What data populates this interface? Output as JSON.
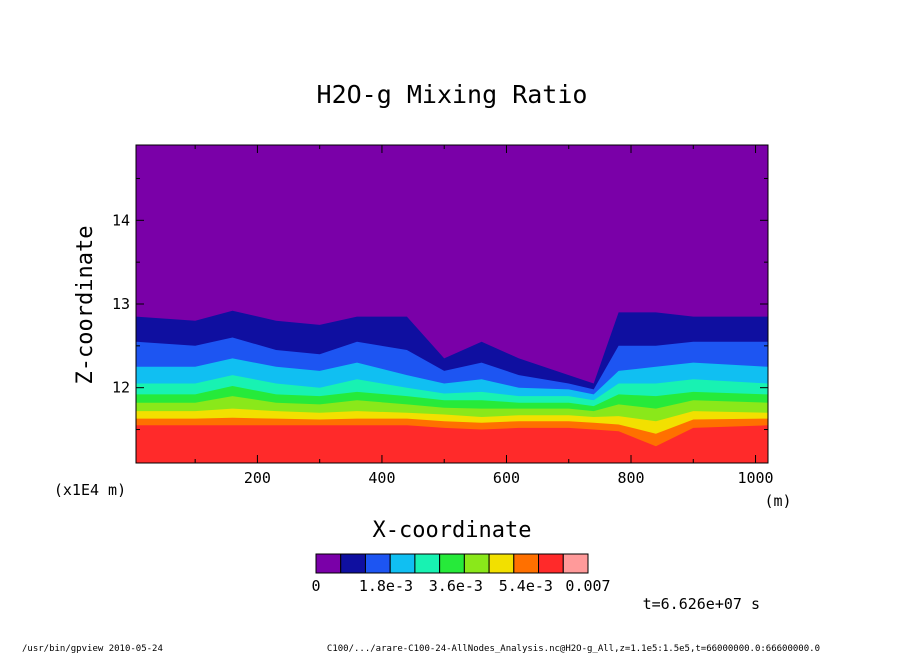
{
  "chart_data": {
    "type": "heatmap",
    "title": "H2O-g Mixing Ratio",
    "xlabel": "X-coordinate",
    "ylabel": "Z-coordinate",
    "x_unit": "(m)",
    "y_unit": "(x1E4 m)",
    "xlim": [
      5,
      1020
    ],
    "ylim": [
      11.1,
      14.9
    ],
    "x_ticks": [
      200,
      400,
      600,
      800,
      1000
    ],
    "y_ticks": [
      12,
      13,
      14
    ],
    "grid": false,
    "colorbar": {
      "colors": [
        "#7a00a8",
        "#0f0fa0",
        "#1d55f2",
        "#10bff2",
        "#18f2b2",
        "#26ea3a",
        "#8ae81a",
        "#f2e000",
        "#ff7000",
        "#ff2a2a",
        "#ff9a9a"
      ],
      "tick_labels": [
        "0",
        "1.8e-3",
        "3.6e-3",
        "5.4e-3",
        "0.007"
      ],
      "tick_values": [
        0,
        0.0018,
        0.0036,
        0.0054,
        0.007
      ]
    },
    "band_heights_z": [
      {
        "x": 5,
        "z": [
          11.55,
          11.63,
          11.72,
          11.82,
          11.92,
          12.05,
          12.25,
          12.55,
          12.85
        ]
      },
      {
        "x": 100,
        "z": [
          11.55,
          11.63,
          11.72,
          11.82,
          11.92,
          12.05,
          12.25,
          12.5,
          12.8
        ]
      },
      {
        "x": 160,
        "z": [
          11.55,
          11.64,
          11.75,
          11.9,
          12.02,
          12.15,
          12.35,
          12.6,
          12.92
        ]
      },
      {
        "x": 230,
        "z": [
          11.55,
          11.63,
          11.72,
          11.82,
          11.92,
          12.05,
          12.25,
          12.45,
          12.8
        ]
      },
      {
        "x": 300,
        "z": [
          11.55,
          11.62,
          11.7,
          11.8,
          11.9,
          12.0,
          12.2,
          12.4,
          12.75
        ]
      },
      {
        "x": 360,
        "z": [
          11.55,
          11.63,
          11.72,
          11.85,
          11.95,
          12.1,
          12.3,
          12.55,
          12.85
        ]
      },
      {
        "x": 440,
        "z": [
          11.55,
          11.63,
          11.7,
          11.8,
          11.9,
          12.0,
          12.15,
          12.45,
          12.85
        ]
      },
      {
        "x": 500,
        "z": [
          11.52,
          11.6,
          11.68,
          11.76,
          11.85,
          11.93,
          12.05,
          12.2,
          12.35
        ]
      },
      {
        "x": 560,
        "z": [
          11.5,
          11.58,
          11.65,
          11.75,
          11.85,
          11.95,
          12.1,
          12.3,
          12.55
        ]
      },
      {
        "x": 620,
        "z": [
          11.52,
          11.6,
          11.67,
          11.75,
          11.82,
          11.9,
          12.0,
          12.15,
          12.35
        ]
      },
      {
        "x": 700,
        "z": [
          11.52,
          11.6,
          11.67,
          11.75,
          11.82,
          11.9,
          11.98,
          12.05,
          12.15
        ]
      },
      {
        "x": 740,
        "z": [
          11.5,
          11.58,
          11.65,
          11.72,
          11.78,
          11.85,
          11.92,
          11.98,
          12.05
        ]
      },
      {
        "x": 780,
        "z": [
          11.48,
          11.56,
          11.66,
          11.8,
          11.92,
          12.05,
          12.2,
          12.5,
          12.9
        ]
      },
      {
        "x": 840,
        "z": [
          11.3,
          11.45,
          11.6,
          11.75,
          11.9,
          12.05,
          12.25,
          12.5,
          12.9
        ]
      },
      {
        "x": 900,
        "z": [
          11.52,
          11.62,
          11.72,
          11.85,
          11.95,
          12.1,
          12.3,
          12.55,
          12.85
        ]
      },
      {
        "x": 1020,
        "z": [
          11.55,
          11.63,
          11.7,
          11.82,
          11.92,
          12.05,
          12.25,
          12.55,
          12.85
        ]
      }
    ]
  },
  "time_label": "t=6.626e+07 s",
  "footer": {
    "left": "/usr/bin/gpview  2010-05-24",
    "right": "C100/.../arare-C100-24-AllNodes_Analysis.nc@H2O-g_All,z=1.1e5:1.5e5,t=66000000.0:66600000.0"
  }
}
